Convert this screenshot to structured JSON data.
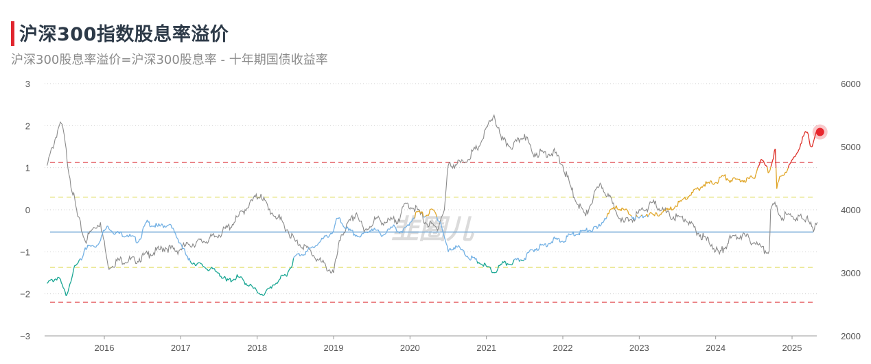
{
  "title": "沪深300指数股息率溢价",
  "subtitle": "沪深300股息率溢价=沪深300股息率 - 十年期国债收益率",
  "watermark": "韭圈儿",
  "chart_data": {
    "type": "line",
    "title": "沪深300指数股息率溢价",
    "subtitle": "沪深300股息率溢价=沪深300股息率 - 十年期国债收益率",
    "xlim": [
      2015.22,
      2025.33
    ],
    "x_ticks": [
      "2016",
      "2017",
      "2018",
      "2019",
      "2020",
      "2021",
      "2022",
      "2023",
      "2024",
      "2025"
    ],
    "y_left": {
      "range": [
        -3,
        3
      ],
      "ticks": [
        "3",
        "2",
        "1",
        "0",
        "−1",
        "−2",
        "−3"
      ]
    },
    "y_right": {
      "range": [
        2000,
        6000
      ],
      "ticks": [
        "6000",
        "5000",
        "4000",
        "3000",
        "2000"
      ]
    },
    "grid": "horizontal dotted",
    "reference_lines": [
      {
        "name": "upper-extreme",
        "value": 1.13,
        "color": "#e0474c",
        "style": "dashed"
      },
      {
        "name": "upper-band",
        "value": 0.3,
        "color": "#e6e27a",
        "style": "dashed"
      },
      {
        "name": "mean",
        "value": -0.53,
        "color": "#6ea6d6",
        "style": "solid"
      },
      {
        "name": "lower-band",
        "value": -1.37,
        "color": "#e6e27a",
        "style": "dashed"
      },
      {
        "name": "lower-extreme",
        "value": -2.2,
        "color": "#e0474c",
        "style": "dashed"
      }
    ],
    "colors": {
      "red": "#dd2c25",
      "orange": "#e0a526",
      "blue": "#72b0e4",
      "teal": "#17a592",
      "index": "#8a8a8a",
      "dot": "#e8262e"
    },
    "series": [
      {
        "name": "股息率溢价",
        "axis": "left",
        "points": [
          [
            2015.25,
            -1.75
          ],
          [
            2015.4,
            -1.6
          ],
          [
            2015.5,
            -2.05
          ],
          [
            2015.6,
            -1.4
          ],
          [
            2015.7,
            -1.2
          ],
          [
            2015.75,
            -0.9
          ],
          [
            2015.9,
            -0.85
          ],
          [
            2016.0,
            -0.5
          ],
          [
            2016.05,
            -0.4
          ],
          [
            2016.15,
            -0.55
          ],
          [
            2016.3,
            -0.6
          ],
          [
            2016.45,
            -0.75
          ],
          [
            2016.55,
            -0.3
          ],
          [
            2016.7,
            -0.4
          ],
          [
            2016.85,
            -0.35
          ],
          [
            2017.0,
            -0.8
          ],
          [
            2017.1,
            -1.2
          ],
          [
            2017.3,
            -1.35
          ],
          [
            2017.5,
            -1.5
          ],
          [
            2017.6,
            -1.7
          ],
          [
            2017.75,
            -1.6
          ],
          [
            2017.9,
            -1.8
          ],
          [
            2018.0,
            -1.95
          ],
          [
            2018.1,
            -2.0
          ],
          [
            2018.2,
            -1.8
          ],
          [
            2018.3,
            -1.65
          ],
          [
            2018.4,
            -1.5
          ],
          [
            2018.5,
            -1.1
          ],
          [
            2018.65,
            -1.0
          ],
          [
            2018.8,
            -0.8
          ],
          [
            2019.0,
            -0.5
          ],
          [
            2019.05,
            -0.2
          ],
          [
            2019.2,
            -0.5
          ],
          [
            2019.35,
            -0.65
          ],
          [
            2019.5,
            -0.45
          ],
          [
            2019.65,
            -0.6
          ],
          [
            2019.8,
            -0.4
          ],
          [
            2019.9,
            -0.55
          ],
          [
            2020.0,
            -0.3
          ],
          [
            2020.1,
            -0.05
          ],
          [
            2020.2,
            -0.15
          ],
          [
            2020.3,
            0.0
          ],
          [
            2020.4,
            -0.3
          ],
          [
            2020.5,
            -1.0
          ],
          [
            2020.6,
            -0.85
          ],
          [
            2020.75,
            -1.1
          ],
          [
            2020.9,
            -1.25
          ],
          [
            2021.0,
            -1.35
          ],
          [
            2021.1,
            -1.5
          ],
          [
            2021.2,
            -1.3
          ],
          [
            2021.35,
            -1.25
          ],
          [
            2021.5,
            -1.15
          ],
          [
            2021.6,
            -0.95
          ],
          [
            2021.75,
            -0.85
          ],
          [
            2021.9,
            -0.7
          ],
          [
            2022.0,
            -0.75
          ],
          [
            2022.1,
            -0.6
          ],
          [
            2022.3,
            -0.5
          ],
          [
            2022.45,
            -0.45
          ],
          [
            2022.55,
            -0.2
          ],
          [
            2022.6,
            -0.1
          ],
          [
            2022.7,
            0.1
          ],
          [
            2022.8,
            0.0
          ],
          [
            2022.9,
            -0.15
          ],
          [
            2023.0,
            -0.2
          ],
          [
            2023.1,
            -0.1
          ],
          [
            2023.2,
            -0.15
          ],
          [
            2023.3,
            -0.05
          ],
          [
            2023.4,
            0.0
          ],
          [
            2023.55,
            0.2
          ],
          [
            2023.7,
            0.4
          ],
          [
            2023.85,
            0.6
          ],
          [
            2024.0,
            0.65
          ],
          [
            2024.1,
            0.8
          ],
          [
            2024.2,
            0.7
          ],
          [
            2024.35,
            0.7
          ],
          [
            2024.5,
            0.75
          ],
          [
            2024.55,
            1.0
          ],
          [
            2024.6,
            1.2
          ],
          [
            2024.7,
            0.9
          ],
          [
            2024.78,
            1.45
          ],
          [
            2024.8,
            0.5
          ],
          [
            2024.85,
            0.8
          ],
          [
            2024.95,
            1.0
          ],
          [
            2025.05,
            1.3
          ],
          [
            2025.15,
            1.75
          ],
          [
            2025.2,
            1.85
          ],
          [
            2025.25,
            1.5
          ],
          [
            2025.3,
            1.75
          ],
          [
            2025.33,
            1.85
          ]
        ]
      },
      {
        "name": "沪深300指数",
        "axis": "right",
        "points": [
          [
            2015.25,
            4700
          ],
          [
            2015.4,
            5300
          ],
          [
            2015.45,
            5350
          ],
          [
            2015.55,
            4500
          ],
          [
            2015.65,
            3900
          ],
          [
            2015.75,
            3500
          ],
          [
            2015.85,
            3700
          ],
          [
            2015.95,
            3800
          ],
          [
            2016.05,
            3100
          ],
          [
            2016.2,
            3200
          ],
          [
            2016.4,
            3200
          ],
          [
            2016.6,
            3300
          ],
          [
            2016.8,
            3400
          ],
          [
            2016.95,
            3350
          ],
          [
            2017.1,
            3450
          ],
          [
            2017.3,
            3500
          ],
          [
            2017.5,
            3600
          ],
          [
            2017.7,
            3800
          ],
          [
            2017.9,
            4100
          ],
          [
            2018.05,
            4250
          ],
          [
            2018.15,
            4000
          ],
          [
            2018.3,
            3850
          ],
          [
            2018.5,
            3500
          ],
          [
            2018.65,
            3400
          ],
          [
            2018.8,
            3200
          ],
          [
            2018.9,
            3100
          ],
          [
            2019.0,
            3000
          ],
          [
            2019.1,
            3600
          ],
          [
            2019.3,
            3950
          ],
          [
            2019.4,
            3650
          ],
          [
            2019.55,
            3850
          ],
          [
            2019.7,
            3800
          ],
          [
            2019.85,
            3850
          ],
          [
            2019.95,
            4100
          ],
          [
            2020.1,
            4000
          ],
          [
            2020.2,
            3800
          ],
          [
            2020.35,
            3700
          ],
          [
            2020.45,
            4000
          ],
          [
            2020.5,
            4700
          ],
          [
            2020.7,
            4750
          ],
          [
            2020.9,
            5000
          ],
          [
            2021.05,
            5400
          ],
          [
            2021.1,
            5500
          ],
          [
            2021.2,
            5100
          ],
          [
            2021.35,
            5000
          ],
          [
            2021.5,
            5200
          ],
          [
            2021.6,
            4900
          ],
          [
            2021.75,
            4900
          ],
          [
            2021.9,
            4900
          ],
          [
            2022.0,
            4700
          ],
          [
            2022.15,
            4200
          ],
          [
            2022.3,
            3900
          ],
          [
            2022.4,
            4200
          ],
          [
            2022.5,
            4400
          ],
          [
            2022.65,
            4100
          ],
          [
            2022.8,
            3800
          ],
          [
            2022.9,
            3850
          ],
          [
            2023.05,
            4000
          ],
          [
            2023.2,
            4100
          ],
          [
            2023.4,
            3900
          ],
          [
            2023.6,
            3850
          ],
          [
            2023.8,
            3600
          ],
          [
            2023.95,
            3450
          ],
          [
            2024.05,
            3300
          ],
          [
            2024.2,
            3550
          ],
          [
            2024.35,
            3600
          ],
          [
            2024.55,
            3450
          ],
          [
            2024.65,
            3350
          ],
          [
            2024.7,
            3350
          ],
          [
            2024.72,
            4000
          ],
          [
            2024.75,
            4100
          ],
          [
            2024.85,
            3900
          ],
          [
            2025.0,
            3900
          ],
          [
            2025.15,
            3850
          ],
          [
            2025.2,
            3900
          ],
          [
            2025.28,
            3650
          ],
          [
            2025.33,
            3800
          ]
        ]
      }
    ],
    "color_thresholds": {
      "red": 1.0,
      "orange": -0.15,
      "blue": -1.2
    }
  }
}
